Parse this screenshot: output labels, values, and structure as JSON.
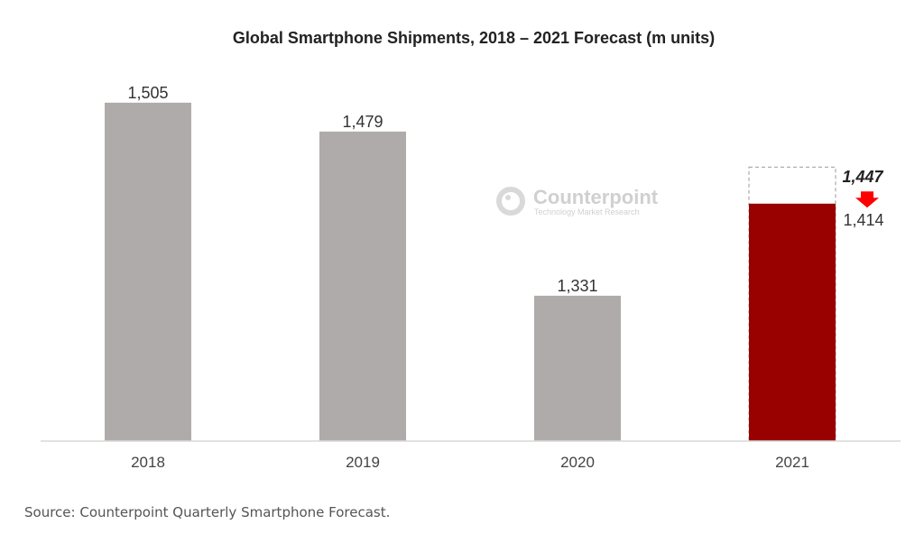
{
  "chart_data": {
    "type": "bar",
    "title": "Global Smartphone Shipments, 2018 – 2021 Forecast (m units)",
    "categories": [
      "2018",
      "2019",
      "2020",
      "2021"
    ],
    "values": [
      1505,
      1479,
      1331,
      1414
    ],
    "value_labels": [
      "1,505",
      "1,479",
      "1,331",
      "1,414"
    ],
    "previous_forecast": {
      "category": "2021",
      "value": 1447,
      "label": "1,447"
    },
    "xlabel": "",
    "ylabel": "",
    "ylim": [
      1200,
      1600
    ],
    "grid": false,
    "colors": {
      "actual": "#afabaa",
      "forecast": "#990000",
      "arrow": "#ff0000"
    }
  },
  "watermark": {
    "name": "Counterpoint",
    "tagline": "Technology Market Research"
  },
  "source": "Source: Counterpoint Quarterly Smartphone Forecast."
}
